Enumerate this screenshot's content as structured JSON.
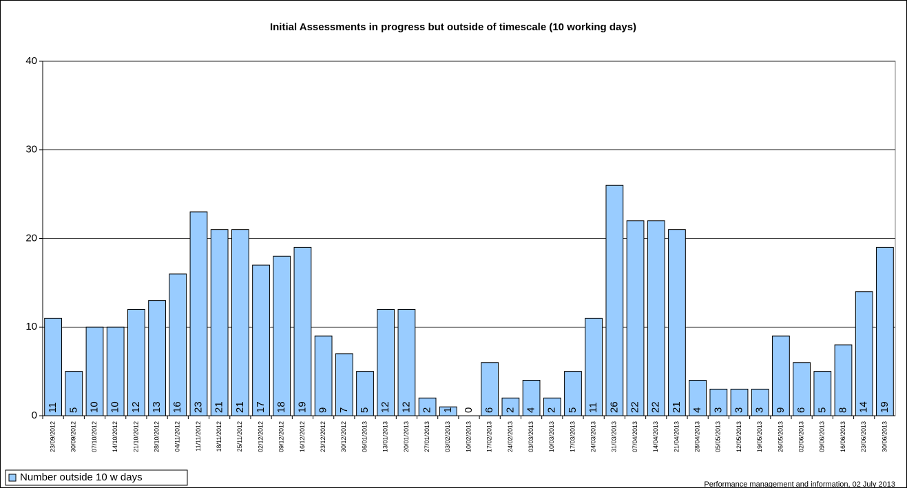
{
  "chart_data": {
    "type": "bar",
    "title": "Initial Assessments in progress but outside of timescale (10 working days)",
    "categories": [
      "23/09/2012",
      "30/09/2012",
      "07/10/2012",
      "14/10/2012",
      "21/10/2012",
      "28/10/2012",
      "04/11/2012",
      "11/11/2012",
      "18/11/2012",
      "25/11/2012",
      "02/12/2012",
      "09/12/2012",
      "16/12/2012",
      "23/12/2012",
      "30/12/2012",
      "06/01/2013",
      "13/01/2013",
      "20/01/2013",
      "27/01/2013",
      "03/02/2013",
      "10/02/2013",
      "17/02/2013",
      "24/02/2013",
      "03/03/2013",
      "10/03/2013",
      "17/03/2013",
      "24/03/2013",
      "31/03/2013",
      "07/04/2013",
      "14/04/2013",
      "21/04/2013",
      "28/04/2013",
      "05/05/2013",
      "12/05/2013",
      "19/05/2013",
      "26/05/2013",
      "02/06/2013",
      "09/06/2013",
      "16/06/2013",
      "23/06/2013",
      "30/06/2013"
    ],
    "series": [
      {
        "name": "Number outside 10 w days",
        "color": "#99ccff",
        "values": [
          11,
          5,
          10,
          10,
          12,
          13,
          16,
          23,
          21,
          21,
          17,
          18,
          19,
          9,
          7,
          5,
          12,
          12,
          2,
          1,
          0,
          6,
          2,
          4,
          2,
          5,
          11,
          26,
          22,
          22,
          21,
          4,
          3,
          3,
          3,
          9,
          6,
          5,
          8,
          14,
          19
        ]
      }
    ],
    "ylim": [
      0,
      40
    ],
    "yticks": [
      0,
      10,
      20,
      30,
      40
    ],
    "grid": true,
    "legend": "bottom-left",
    "footer": "Performance management and information, 02 July 2013"
  }
}
